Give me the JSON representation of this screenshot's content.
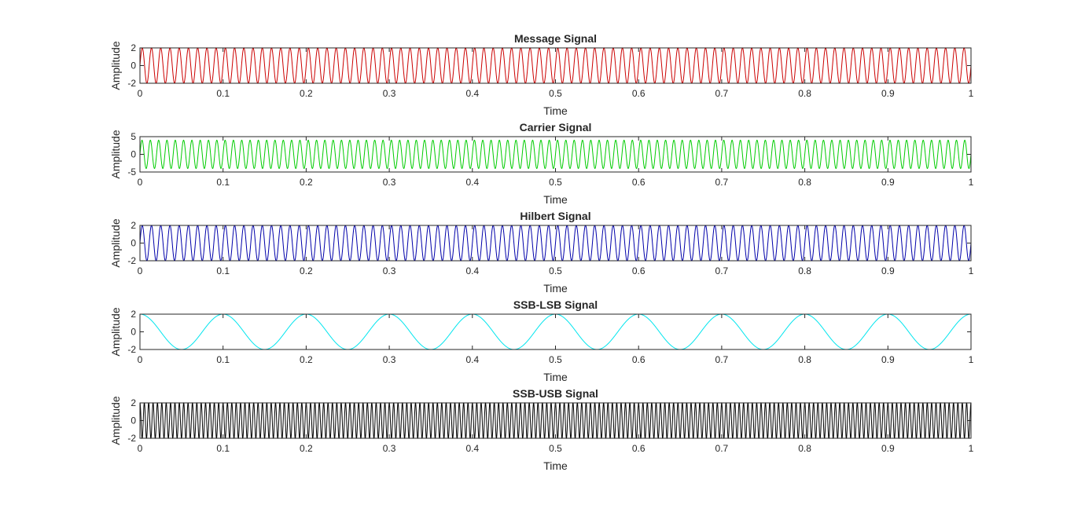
{
  "figure": {
    "background": "#ffffff"
  },
  "chart_data": [
    {
      "type": "line",
      "title": "Message Signal",
      "xlabel": "Time",
      "ylabel": "Amplitude",
      "xlim": [
        0,
        1
      ],
      "ylim": [
        -2,
        2
      ],
      "xticks": [
        "0",
        "0.1",
        "0.2",
        "0.3",
        "0.4",
        "0.5",
        "0.6",
        "0.7",
        "0.8",
        "0.9",
        "1"
      ],
      "yticks": [
        "-2",
        "0",
        "2"
      ],
      "series": [
        {
          "color": "#cc0000",
          "function": "sine",
          "amplitude": 2,
          "frequency_hz": 90
        }
      ]
    },
    {
      "type": "line",
      "title": "Carrier Signal",
      "xlabel": "Time",
      "ylabel": "Amplitude",
      "xlim": [
        0,
        1
      ],
      "ylim": [
        -5,
        5
      ],
      "xticks": [
        "0",
        "0.1",
        "0.2",
        "0.3",
        "0.4",
        "0.5",
        "0.6",
        "0.7",
        "0.8",
        "0.9",
        "1"
      ],
      "yticks": [
        "-5",
        "0",
        "5"
      ],
      "series": [
        {
          "color": "#00cc00",
          "function": "sine",
          "amplitude": 4,
          "frequency_hz": 100
        }
      ]
    },
    {
      "type": "line",
      "title": "Hilbert Signal",
      "xlabel": "Time",
      "ylabel": "Amplitude",
      "xlim": [
        0,
        1
      ],
      "ylim": [
        -2,
        2
      ],
      "xticks": [
        "0",
        "0.1",
        "0.2",
        "0.3",
        "0.4",
        "0.5",
        "0.6",
        "0.7",
        "0.8",
        "0.9",
        "1"
      ],
      "yticks": [
        "-2",
        "0",
        "2"
      ],
      "series": [
        {
          "color": "#0000aa",
          "function": "sine",
          "amplitude": 2,
          "frequency_hz": 90
        }
      ]
    },
    {
      "type": "line",
      "title": "SSB-LSB Signal",
      "xlabel": "Time",
      "ylabel": "Amplitude",
      "xlim": [
        0,
        1
      ],
      "ylim": [
        -2,
        2
      ],
      "xticks": [
        "0",
        "0.1",
        "0.2",
        "0.3",
        "0.4",
        "0.5",
        "0.6",
        "0.7",
        "0.8",
        "0.9",
        "1"
      ],
      "yticks": [
        "-2",
        "0",
        "2"
      ],
      "series": [
        {
          "color": "#00e5ee",
          "function": "cosine",
          "amplitude": 2,
          "frequency_hz": 10
        }
      ]
    },
    {
      "type": "line",
      "title": "SSB-USB Signal",
      "xlabel": "Time",
      "ylabel": "Amplitude",
      "xlim": [
        0,
        1
      ],
      "ylim": [
        -2,
        2
      ],
      "xticks": [
        "0",
        "0.1",
        "0.2",
        "0.3",
        "0.4",
        "0.5",
        "0.6",
        "0.7",
        "0.8",
        "0.9",
        "1"
      ],
      "yticks": [
        "-2",
        "0",
        "2"
      ],
      "series": [
        {
          "color": "#000000",
          "function": "cosine",
          "amplitude": 2,
          "frequency_hz": 190
        }
      ]
    }
  ]
}
